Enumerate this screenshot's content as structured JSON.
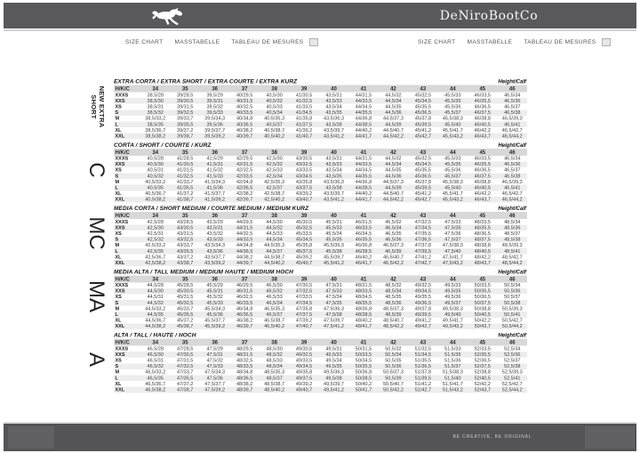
{
  "header": {
    "brand": "DeNiroBootCo",
    "logo_icon": "horse-icon"
  },
  "nav": {
    "items": [
      "SIZE CHART",
      "MASSTABELLE",
      "TABLEAU DE MESURES"
    ]
  },
  "footer": {
    "tagline": "BE CREATIVE, BE ORIGINAL"
  },
  "colors": {
    "header_bar": "#59595b",
    "footer_bar": "#545456",
    "table_header_bg": "#d8d8d8",
    "row_stripe": "#ededed"
  },
  "table": {
    "header_label": "H/K/C",
    "height_calf_label": "Height/Calf",
    "columns": [
      "34",
      "35",
      "36",
      "37",
      "38",
      "39",
      "40",
      "41",
      "42",
      "43",
      "44",
      "45",
      "46"
    ],
    "sections": [
      {
        "title": "EXTRA CORTA / EXTRA SHORT / EXTRA COURTE / EXTRA KURZ",
        "side_label": "NEW EXTRA SHORT",
        "rows": [
          {
            "label": "XXXS",
            "values": [
              "38,5/28",
              "39/28,5",
              "39,5/29",
              "40/29,5",
              "40,5/30",
              "41/30,5",
              "43,5/31",
              "44/31,5",
              "44,5/32",
              "45/32,5",
              "45,5/33",
              "46/33,5",
              "46,5/34"
            ]
          },
          {
            "label": "XXS",
            "values": [
              "38,5/30",
              "39/30,5",
              "39,5/31",
              "40/31,5",
              "40,5/32",
              "41/32,5",
              "43,5/33",
              "44/33,5",
              "44,5/34",
              "45/34,5",
              "45,5/35",
              "46/35,5",
              "46,5/36"
            ]
          },
          {
            "label": "XS",
            "values": [
              "38,5/31",
              "39/31,5",
              "39,5/32",
              "40/32,5",
              "40,5/33",
              "41/33,5",
              "43,5/34",
              "44/34,5",
              "44,5/35",
              "45/35,5",
              "45,5/36",
              "46/36,5",
              "46,5/37"
            ]
          },
          {
            "label": "S",
            "values": [
              "38,5/32",
              "39/32,5",
              "39,5/33",
              "40/33,5",
              "40,5/34",
              "41/34,5",
              "43,5/35",
              "44/35,5",
              "44,5/36",
              "45/36,5",
              "45,5/37",
              "46/37,5",
              "46,5/38"
            ]
          },
          {
            "label": "M",
            "values": [
              "38,5/33,2",
              "39/33,7",
              "39,5/34,3",
              "40/34,8",
              "40,5/35,3",
              "41/35,8",
              "43,5/36,3",
              "44/36,8",
              "44,5/37,3",
              "45/37,8",
              "45,5/38,3",
              "46/38,8",
              "46,5/39,3"
            ]
          },
          {
            "label": "L",
            "values": [
              "38,5/35",
              "39/35,5",
              "39,5/36",
              "40/36,5",
              "40,5/37",
              "41/37,5",
              "43,5/38",
              "44/38,5",
              "44,5/39",
              "45/39,5",
              "45,5/40",
              "46/40,5",
              "46,5/41"
            ]
          },
          {
            "label": "XL",
            "values": [
              "38,5/36,7",
              "39/37,2",
              "39,5/37,7",
              "40/38,2",
              "40,5/38,7",
              "41/39,2",
              "43,5/39,7",
              "44/40,2",
              "44,5/40,7",
              "45/41,2",
              "45,5/41,7",
              "46/42,2",
              "46,5/42,7"
            ]
          },
          {
            "label": "XXL",
            "values": [
              "38,5/38,2",
              "39/38,7",
              "39,5/39,2",
              "40/39,7",
              "40,5/40,2",
              "41/40,7",
              "43,5/41,2",
              "44/41,7",
              "44,5/42,2",
              "45/42,7",
              "45,5/43,2",
              "46/43,7",
              "46,5/44,2"
            ]
          }
        ]
      },
      {
        "title": "CORTA / SHORT / COURTE / KURZ",
        "side_label": "C",
        "rows": [
          {
            "label": "XXXS",
            "values": [
              "40,5/28",
              "41/28,5",
              "41,5/29",
              "42/29,5",
              "42,5/30",
              "43/30,5",
              "43,5/31",
              "44/31,5",
              "44,5/32",
              "45/32,5",
              "45,5/33",
              "46/33,5",
              "46,5/34"
            ]
          },
          {
            "label": "XXS",
            "values": [
              "40,5/30",
              "41/30,5",
              "41,5/31",
              "42/31,5",
              "42,5/32",
              "43/32,5",
              "43,5/33",
              "44/33,5",
              "44,5/34",
              "45/34,5",
              "45,5/35",
              "46/35,5",
              "46,5/36"
            ]
          },
          {
            "label": "XS",
            "values": [
              "40,5/31",
              "41/31,5",
              "41,5/32",
              "42/32,5",
              "42,5/33",
              "43/33,5",
              "43,5/34",
              "44/34,5",
              "44,5/35",
              "45/35,5",
              "45,5/36",
              "46/36,5",
              "46,5/37"
            ]
          },
          {
            "label": "S",
            "values": [
              "40,5/32",
              "41/32,5",
              "41,5/33",
              "42/33,5",
              "42,5/34",
              "43/34,5",
              "43,5/35",
              "44/35,5",
              "44,5/36",
              "45/36,5",
              "45,5/37",
              "46/37,5",
              "46,5/38"
            ]
          },
          {
            "label": "M",
            "values": [
              "40,5/33,2",
              "41/33,7",
              "41,5/34,3",
              "42/34,8",
              "42,5/35,3",
              "43/35,8",
              "43,5/36,3",
              "44/36,8",
              "44,5/37,3",
              "45/37,8",
              "45,5/38,3",
              "46/38,8",
              "46,5/39,3"
            ]
          },
          {
            "label": "L",
            "values": [
              "40,5/35",
              "41/35,5",
              "41,5/36",
              "42/36,5",
              "42,5/37",
              "43/37,5",
              "43,5/38",
              "44/38,5",
              "44,5/39",
              "45/39,5",
              "45,5/40",
              "46/40,5",
              "46,5/41"
            ]
          },
          {
            "label": "XL",
            "values": [
              "40,5/36,7",
              "41/37,2",
              "41,5/37,7",
              "42/38,2",
              "42,5/38,7",
              "43/39,2",
              "43,5/39,7",
              "44/40,2",
              "44,5/40,7",
              "45/41,2",
              "45,5/41,7",
              "46/42,2",
              "46,5/42,7"
            ]
          },
          {
            "label": "XXL",
            "values": [
              "40,5/38,2",
              "41/38,7",
              "41,5/39,2",
              "42/39,7",
              "42,5/40,2",
              "43/40,7",
              "43,5/41,2",
              "44/41,7",
              "44,5/42,2",
              "45/42,7",
              "45,5/43,2",
              "46/43,7",
              "46,5/44,2"
            ]
          }
        ]
      },
      {
        "title": "MEDIA CORTA / SHORT MEDIUM / COURTE MEDIUM / MEDIUM KURZ",
        "side_label": "MC",
        "rows": [
          {
            "label": "XXXS",
            "values": [
              "42,5/28",
              "43/28,5",
              "43,5/29",
              "44/29,5",
              "44,5/30",
              "45/30,5",
              "45,5/31",
              "46/31,5",
              "46,5/32",
              "47/32,5",
              "47,5/33",
              "48/33,5",
              "48,5/34"
            ]
          },
          {
            "label": "XXS",
            "values": [
              "42,5/30",
              "43/30,5",
              "43,5/31",
              "44/31,5",
              "44,5/32",
              "45/32,5",
              "45,5/33",
              "46/33,5",
              "46,5/34",
              "47/34,5",
              "47,5/35",
              "48/35,5",
              "48,5/36"
            ]
          },
          {
            "label": "XS",
            "values": [
              "42,5/31",
              "43/31,5",
              "43,5/32",
              "44/32,5",
              "44,5/33",
              "45/33,5",
              "45,5/34",
              "46/34,5",
              "46,5/35",
              "47/35,5",
              "47,5/36",
              "48/36,5",
              "48,5/37"
            ]
          },
          {
            "label": "S",
            "values": [
              "42,5/32",
              "43/32,5",
              "43,5/33",
              "44/33,5",
              "44,5/34",
              "45/34,5",
              "45,5/35",
              "46/35,5",
              "46,5/36",
              "47/36,5",
              "47,5/37",
              "48/37,5",
              "48,5/38"
            ]
          },
          {
            "label": "M",
            "values": [
              "42,5/33,2",
              "43/33,7",
              "43,5/34,3",
              "44/34,8",
              "44,5/35,3",
              "45/35,8",
              "45,5/36,3",
              "46/36,8",
              "46,5/37,3",
              "47/37,8",
              "47,5/38,3",
              "48/38,8",
              "48,5/39,3"
            ]
          },
          {
            "label": "L",
            "values": [
              "42,5/35",
              "43/35,5",
              "43,5/36",
              "44/36,5",
              "44,5/37",
              "45/37,5",
              "45,5/38",
              "46/38,5",
              "46,5/39",
              "47/39,5",
              "47,5/40",
              "48/40,5",
              "48,5/41"
            ]
          },
          {
            "label": "XL",
            "values": [
              "42,5/36,7",
              "43/37,2",
              "43,5/37,7",
              "44/38,2",
              "44,5/38,7",
              "45/39,2",
              "45,5/39,7",
              "46/40,2",
              "46,5/40,7",
              "47/41,2",
              "47,5/41,7",
              "48/42,2",
              "48,5/42,7"
            ]
          },
          {
            "label": "XXL",
            "values": [
              "42,5/38,2",
              "43/38,7",
              "43,5/39,2",
              "44/39,7",
              "44,5/40,2",
              "45/40,7",
              "45,5/41,2",
              "46/41,7",
              "46,5/42,2",
              "47/42,7",
              "47,5/43,2",
              "48/43,7",
              "48,5/44,2"
            ]
          }
        ]
      },
      {
        "title": "MEDIA ALTA / TALL MEDIUM / MEDIUM HAUTE / MEDIUM HOCH",
        "side_label": "MA",
        "rows": [
          {
            "label": "XXXS",
            "values": [
              "44,5/28",
              "45/28,5",
              "45,5/29",
              "46/29,5",
              "46,5/30",
              "47/30,5",
              "47,5/31",
              "48/31,5",
              "48,5/32",
              "49/32,5",
              "49,5/33",
              "50/33,5",
              "50,5/34"
            ]
          },
          {
            "label": "XXS",
            "values": [
              "44,5/30",
              "45/30,5",
              "45,5/31",
              "46/31,5",
              "46,5/32",
              "47/32,5",
              "47,5/33",
              "48/33,5",
              "48,5/34",
              "49/34,5",
              "49,5/35",
              "50/35,5",
              "50,5/36"
            ]
          },
          {
            "label": "XS",
            "values": [
              "44,5/31",
              "45/31,5",
              "45,5/32",
              "46/32,5",
              "46,5/33",
              "47/33,5",
              "47,5/34",
              "48/34,5",
              "48,5/35",
              "49/35,5",
              "49,5/36",
              "50/36,5",
              "50,5/37"
            ]
          },
          {
            "label": "S",
            "values": [
              "44,5/32",
              "45/32,5",
              "45,5/33",
              "46/33,5",
              "46,5/34",
              "47/34,5",
              "47,5/35",
              "48/35,5",
              "48,5/36",
              "49/36,5",
              "49,5/37",
              "50/37,5",
              "50,5/38"
            ]
          },
          {
            "label": "M",
            "values": [
              "44,5/33,2",
              "45/33,7",
              "45,5/34,3",
              "46/34,8",
              "46,5/35,3",
              "47/35,8",
              "47,5/36,3",
              "48/36,8",
              "48,5/37,3",
              "49/37,8",
              "49,5/38,3",
              "50/38,8",
              "50,5/39,3"
            ]
          },
          {
            "label": "L",
            "values": [
              "44,5/35",
              "45/35,5",
              "45,5/36",
              "46/36,5",
              "46,5/37",
              "47/37,5",
              "47,5/38",
              "48/38,5",
              "48,5/39",
              "49/39,5",
              "49,5/40",
              "50/40,5",
              "50,5/41"
            ]
          },
          {
            "label": "XL",
            "values": [
              "44,5/36,7",
              "45/37,2",
              "45,5/37,7",
              "46/38,2",
              "46,5/38,7",
              "47/39,2",
              "47,5/39,7",
              "48/40,2",
              "48,5/40,7",
              "49/41,2",
              "49,5/41,7",
              "50/42,2",
              "50,5/42,7"
            ]
          },
          {
            "label": "XXL",
            "values": [
              "44,5/38,2",
              "45/38,7",
              "45,5/39,2",
              "46/39,7",
              "46,5/40,2",
              "47/40,7",
              "47,5/41,2",
              "48/41,7",
              "48,5/42,2",
              "49/42,7",
              "49,5/43,2",
              "50/43,7",
              "50,5/44,2"
            ]
          }
        ]
      },
      {
        "title": "ALTA / TALL / HAUTE / HOCH",
        "side_label": "A",
        "rows": [
          {
            "label": "XXXS",
            "values": [
              "46,5/28",
              "47/28,5",
              "47,5/29",
              "48/29,5",
              "48,5/30",
              "49/30,5",
              "49,5/31",
              "50/31,5",
              "50,5/32",
              "51/32,5",
              "51,5/33",
              "52/33,5",
              "52,5/34"
            ]
          },
          {
            "label": "XXS",
            "values": [
              "46,5/30",
              "47/30,5",
              "47,5/31",
              "48/31,5",
              "48,5/32",
              "49/32,5",
              "49,5/33",
              "50/33,5",
              "50,5/34",
              "51/34,5",
              "51,5/35",
              "52/35,5",
              "52,5/36"
            ]
          },
          {
            "label": "XS",
            "values": [
              "46,5/31",
              "47/31,5",
              "47,5/32",
              "48/32,5",
              "48,5/33",
              "49/33,5",
              "49,5/34",
              "50/34,5",
              "50,5/35",
              "51/35,5",
              "51,5/36",
              "52/36,5",
              "52,5/37"
            ]
          },
          {
            "label": "S",
            "values": [
              "46,5/32",
              "47/32,5",
              "47,5/33",
              "48/33,5",
              "48,5/34",
              "49/34,5",
              "49,5/35",
              "50/35,5",
              "50,5/36",
              "51/36,5",
              "51,5/37",
              "52/37,5",
              "52,5/38"
            ]
          },
          {
            "label": "M",
            "values": [
              "46,5/33,2",
              "47/33,7",
              "47,5/34,3",
              "48/34,8",
              "48,5/35,3",
              "49/35,8",
              "49,5/36,3",
              "50/36,8",
              "50,5/37,3",
              "51/37,8",
              "51,5/38,3",
              "52/38,8",
              "52,5/39,3"
            ]
          },
          {
            "label": "L",
            "values": [
              "46,5/35",
              "47/35,5",
              "47,5/36",
              "48/36,5",
              "48,5/37",
              "49/37,5",
              "49,5/38",
              "50/38,5",
              "50,5/39",
              "51/39,5",
              "51,5/40",
              "52/40,5",
              "52,5/41"
            ]
          },
          {
            "label": "XL",
            "values": [
              "46,5/36,7",
              "47/37,2",
              "47,5/37,7",
              "48/38,2",
              "48,5/38,7",
              "49/39,2",
              "49,5/39,7",
              "50/40,2",
              "50,5/40,7",
              "51/41,2",
              "51,5/41,7",
              "52/42,2",
              "52,5/42,7"
            ]
          },
          {
            "label": "XXL",
            "values": [
              "46,5/38,2",
              "47/38,7",
              "47,5/39,2",
              "48/39,7",
              "48,5/40,2",
              "49/40,7",
              "49,5/41,2",
              "50/41,7",
              "50,5/42,2",
              "51/42,7",
              "51,5/43,2",
              "52/43,7",
              "52,5/44,2"
            ]
          }
        ]
      }
    ]
  }
}
